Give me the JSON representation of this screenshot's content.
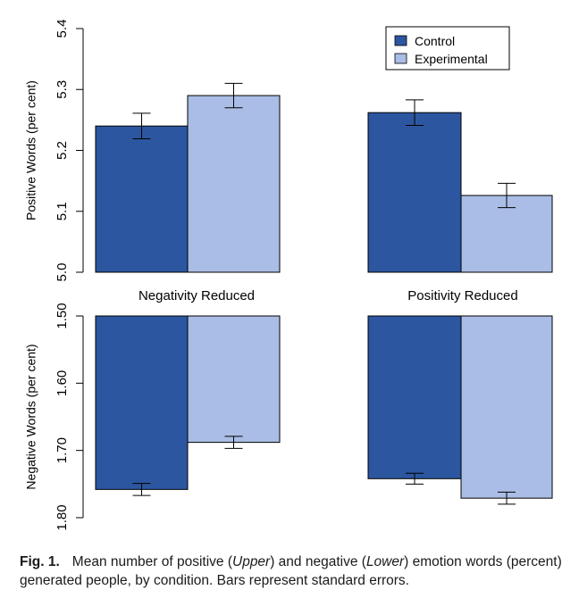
{
  "colors": {
    "control": "#2c56a0",
    "experimental": "#aabde6"
  },
  "chart_data": [
    {
      "type": "bar",
      "panel": "upper",
      "categories": [
        "Negativity Reduced",
        "Positivity Reduced"
      ],
      "series": [
        {
          "name": "Control",
          "values": [
            5.24,
            5.262
          ],
          "errors": [
            0.021,
            0.021
          ]
        },
        {
          "name": "Experimental",
          "values": [
            5.29,
            5.126
          ],
          "errors": [
            0.02,
            0.02
          ]
        }
      ],
      "ylabel": "Positive Words (per cent)",
      "ylim": [
        5.0,
        5.4
      ],
      "yticks": [
        "5.0",
        "5.1",
        "5.2",
        "5.3",
        "5.4"
      ],
      "legend": {
        "position": "top-right",
        "entries": [
          "Control",
          "Experimental"
        ]
      }
    },
    {
      "type": "bar",
      "panel": "lower",
      "categories": [
        "Negativity Reduced",
        "Positivity Reduced"
      ],
      "series": [
        {
          "name": "Control",
          "values": [
            1.758,
            1.742
          ],
          "errors": [
            0.009,
            0.008
          ]
        },
        {
          "name": "Experimental",
          "values": [
            1.688,
            1.771
          ],
          "errors": [
            0.009,
            0.009
          ]
        }
      ],
      "ylabel": "Negative Words (per cent)",
      "ylim": [
        1.5,
        1.8
      ],
      "reversed": true,
      "yticks": [
        "1.50",
        "1.60",
        "1.70",
        "1.80"
      ]
    }
  ],
  "caption": {
    "label": "Fig. 1.",
    "text_1": "Mean number of positive (",
    "upper": "Upper",
    "text_2": ") and negative (",
    "lower": "Lower",
    "text_3": ") emotion words (percent) generated people, by condition. Bars represent standard errors."
  }
}
